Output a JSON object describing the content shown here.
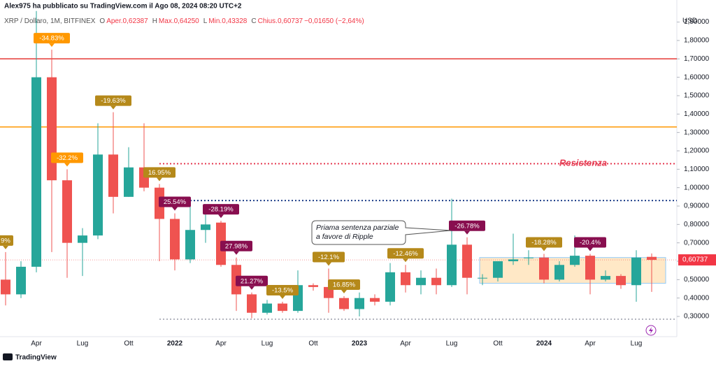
{
  "chart_data": {
    "type": "candlestick",
    "header": "Alex975 ha pubblicato su TradingView.com il Ago 08, 2024 08:20 UTC+2",
    "symbol": "XRP / Dollaro, 1M, BITFINEX",
    "legend_values": [
      "O",
      "Aper.0,62387",
      "H",
      "Max.0,64250",
      "L",
      "Min.0,43328",
      "C",
      "Chius.0,60737",
      "−0,01650 (−2,64%)"
    ],
    "currency": "USD",
    "categories": [
      null,
      null,
      "Apr",
      null,
      null,
      "Lug",
      null,
      null,
      "Ott",
      null,
      null,
      "2022",
      null,
      null,
      "Apr",
      null,
      null,
      "Lug",
      null,
      null,
      "Ott",
      null,
      null,
      "2023",
      null,
      null,
      "Apr",
      null,
      null,
      "Lug",
      null,
      null,
      "Ott",
      null,
      null,
      "2024",
      null,
      null,
      "Apr",
      null,
      null,
      "Lug",
      null
    ],
    "open": [
      0.5,
      0.42,
      0.57,
      1.6,
      1.04,
      0.7,
      0.74,
      1.18,
      0.95,
      1.11,
      1.0,
      0.83,
      0.61,
      0.77,
      0.81,
      0.58,
      0.42,
      0.32,
      0.37,
      0.33,
      0.47,
      0.46,
      0.4,
      0.34,
      0.4,
      0.38,
      0.54,
      0.47,
      0.51,
      0.47,
      0.69,
      0.51,
      0.51,
      0.6,
      0.62,
      0.62,
      0.5,
      0.58,
      0.63,
      0.5,
      0.52,
      0.47,
      0.62387
    ],
    "high": [
      0.65,
      0.6,
      1.96,
      1.75,
      1.1,
      0.78,
      1.35,
      1.41,
      1.22,
      1.35,
      1.02,
      0.86,
      0.91,
      0.91,
      0.82,
      0.62,
      0.43,
      0.39,
      0.38,
      0.55,
      0.48,
      0.56,
      0.41,
      0.43,
      0.42,
      0.59,
      0.58,
      0.55,
      0.56,
      0.94,
      0.73,
      0.53,
      0.6,
      0.75,
      0.66,
      0.64,
      0.6,
      0.74,
      0.64,
      0.55,
      0.53,
      0.66,
      0.6425
    ],
    "low": [
      0.36,
      0.4,
      0.54,
      0.65,
      0.51,
      0.52,
      0.72,
      0.86,
      0.95,
      0.98,
      0.6,
      0.55,
      0.59,
      0.7,
      0.57,
      0.33,
      0.29,
      0.31,
      0.32,
      0.32,
      0.44,
      0.32,
      0.33,
      0.3,
      0.36,
      0.36,
      0.43,
      0.42,
      0.42,
      0.46,
      0.42,
      0.47,
      0.49,
      0.58,
      0.58,
      0.48,
      0.49,
      0.57,
      0.42,
      0.49,
      0.45,
      0.38,
      0.43328
    ],
    "close": [
      0.42,
      0.57,
      1.6,
      1.04,
      0.7,
      0.74,
      1.18,
      0.95,
      1.11,
      1.0,
      0.83,
      0.61,
      0.77,
      0.8,
      0.58,
      0.42,
      0.32,
      0.37,
      0.33,
      0.47,
      0.46,
      0.4,
      0.34,
      0.4,
      0.38,
      0.54,
      0.47,
      0.51,
      0.47,
      0.69,
      0.51,
      0.51,
      0.6,
      0.61,
      0.62,
      0.5,
      0.58,
      0.63,
      0.5,
      0.52,
      0.47,
      0.62,
      0.60737
    ],
    "up_color": "#26a69a",
    "down_color": "#ef5350",
    "ylim": [
      0.19,
      2.02
    ],
    "yticks": [
      {
        "value": 0.3,
        "label": "0,30000"
      },
      {
        "value": 0.4,
        "label": "0,40000"
      },
      {
        "value": 0.5,
        "label": "0,50000"
      },
      {
        "value": 0.6,
        "label": "0,60000"
      },
      {
        "value": 0.7,
        "label": "0,70000"
      },
      {
        "value": 0.8,
        "label": "0,80000"
      },
      {
        "value": 0.9,
        "label": "0,90000"
      },
      {
        "value": 1.0,
        "label": "1,00000"
      },
      {
        "value": 1.1,
        "label": "1,10000"
      },
      {
        "value": 1.2,
        "label": "1,20000"
      },
      {
        "value": 1.3,
        "label": "1,30000"
      },
      {
        "value": 1.4,
        "label": "1,40000"
      },
      {
        "value": 1.5,
        "label": "1,50000"
      },
      {
        "value": 1.6,
        "label": "1,60000"
      },
      {
        "value": 1.7,
        "label": "1,70000"
      },
      {
        "value": 1.8,
        "label": "1,80000"
      },
      {
        "value": 1.9,
        "label": "1,90000"
      }
    ],
    "last_price": {
      "value": 0.60737,
      "label": "0,60737"
    },
    "levels": [
      {
        "value": 1.7,
        "color": "#e53935",
        "style": "solid",
        "from": 0
      },
      {
        "value": 1.33,
        "color": "#ff9800",
        "style": "solid",
        "from": 0
      },
      {
        "value": 1.13,
        "color": "#e53950",
        "style": "dotted",
        "from": 10
      },
      {
        "value": 0.93,
        "color": "#1e3f8a",
        "style": "dotted",
        "from": 12
      },
      {
        "value": 0.285,
        "color": "#b2b5be",
        "style": "dotted",
        "from": 10
      }
    ],
    "box": {
      "from": 31,
      "low": 0.48,
      "high": 0.62,
      "color": "#ffcc80"
    },
    "resistance_label": "Resistenza",
    "callout": [
      "Priama sentenza parziale",
      "a favore di Ripple"
    ],
    "annotations": [
      {
        "text": "9%",
        "at": 0,
        "color": "#b5891a"
      },
      {
        "text": "-34.83%",
        "at": 3,
        "color": "#ff9800"
      },
      {
        "text": "-32.2%",
        "at": 4,
        "color": "#ff9800"
      },
      {
        "text": "-19.63%",
        "at": 7,
        "color": "#b5891a"
      },
      {
        "text": "16.95%",
        "at": 10,
        "color": "#b5891a"
      },
      {
        "text": "25.54%",
        "at": 11,
        "color": "#880e4f"
      },
      {
        "text": "-28.19%",
        "at": 14,
        "color": "#880e4f"
      },
      {
        "text": "27.98%",
        "at": 15,
        "color": "#880e4f"
      },
      {
        "text": "21.27%",
        "at": 16,
        "color": "#880e4f"
      },
      {
        "text": "-13.5%",
        "at": 18,
        "color": "#b5891a"
      },
      {
        "text": "-12.1%",
        "at": 21,
        "color": "#b5891a"
      },
      {
        "text": "16.85%",
        "at": 22,
        "color": "#b5891a"
      },
      {
        "text": "-12.46%",
        "at": 26,
        "color": "#b5891a"
      },
      {
        "text": "-26.78%",
        "at": 30,
        "color": "#880e4f"
      },
      {
        "text": "-18.28%",
        "at": 35,
        "color": "#b5891a"
      },
      {
        "text": "-20.4%",
        "at": 38,
        "color": "#880e4f"
      }
    ],
    "footer": "TradingView"
  }
}
